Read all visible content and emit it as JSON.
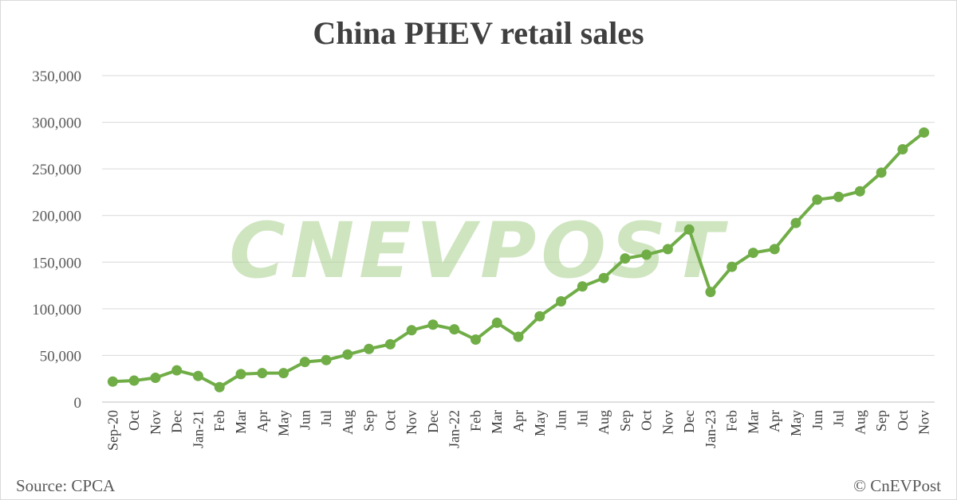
{
  "footer": {
    "source": "Source: CPCA",
    "copyright": "© CnEVPost"
  },
  "watermark": "CNEVPOST",
  "colors": {
    "line": "#70ad47",
    "grid": "#d9d9d9",
    "text": "#404040",
    "watermark": "#a9d18e"
  },
  "chart_data": {
    "type": "line",
    "title": "China PHEV retail sales",
    "xlabel": "",
    "ylabel": "",
    "ylim": [
      0,
      350000
    ],
    "yticks": [
      0,
      50000,
      100000,
      150000,
      200000,
      250000,
      300000,
      350000
    ],
    "ytick_labels": [
      "0",
      "50,000",
      "100,000",
      "150,000",
      "200,000",
      "250,000",
      "300,000",
      "350,000"
    ],
    "grid": true,
    "legend": "none",
    "categories": [
      "Sep-20",
      "Oct",
      "Nov",
      "Dec",
      "Jan-21",
      "Feb",
      "Mar",
      "Apr",
      "May",
      "Jun",
      "Jul",
      "Aug",
      "Sep",
      "Oct",
      "Nov",
      "Dec",
      "Jan-22",
      "Feb",
      "Mar",
      "Apr",
      "May",
      "Jun",
      "Jul",
      "Aug",
      "Sep",
      "Oct",
      "Nov",
      "Dec",
      "Jan-23",
      "Feb",
      "Mar",
      "Apr",
      "May",
      "Jun",
      "Jul",
      "Aug",
      "Sep",
      "Oct",
      "Nov"
    ],
    "series": [
      {
        "values": [
          22000,
          23000,
          26000,
          34000,
          28000,
          16000,
          30000,
          31000,
          31000,
          43000,
          45000,
          51000,
          57000,
          62000,
          77000,
          83000,
          78000,
          67000,
          85000,
          70000,
          92000,
          108000,
          124000,
          133000,
          154000,
          158000,
          164000,
          185000,
          118000,
          145000,
          160000,
          164000,
          192000,
          217000,
          220000,
          226000,
          246000,
          271000,
          289000
        ]
      }
    ]
  }
}
